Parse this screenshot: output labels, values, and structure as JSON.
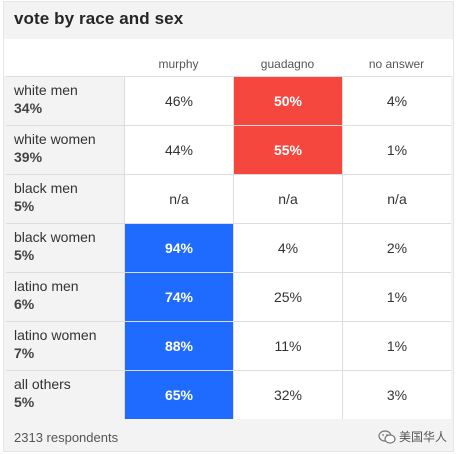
{
  "title": "vote by race and sex",
  "columns": [
    "murphy",
    "guadagno",
    "no answer"
  ],
  "colors": {
    "murphy": "#1f6bff",
    "guadagno": "#f5473e"
  },
  "rows": [
    {
      "group": "white men",
      "share": "34%",
      "values": [
        "46%",
        "50%",
        "4%"
      ],
      "winner": 1
    },
    {
      "group": "white women",
      "share": "39%",
      "values": [
        "44%",
        "55%",
        "1%"
      ],
      "winner": 1
    },
    {
      "group": "black men",
      "share": "5%",
      "values": [
        "n/a",
        "n/a",
        "n/a"
      ],
      "winner": -1
    },
    {
      "group": "black women",
      "share": "5%",
      "values": [
        "94%",
        "4%",
        "2%"
      ],
      "winner": 0
    },
    {
      "group": "latino men",
      "share": "6%",
      "values": [
        "74%",
        "25%",
        "1%"
      ],
      "winner": 0
    },
    {
      "group": "latino women",
      "share": "7%",
      "values": [
        "88%",
        "11%",
        "1%"
      ],
      "winner": 0
    },
    {
      "group": "all others",
      "share": "5%",
      "values": [
        "65%",
        "32%",
        "3%"
      ],
      "winner": 0
    }
  ],
  "footer": "2313 respondents",
  "watermark": {
    "text": "美国华人",
    "icon": "wechat-icon"
  }
}
